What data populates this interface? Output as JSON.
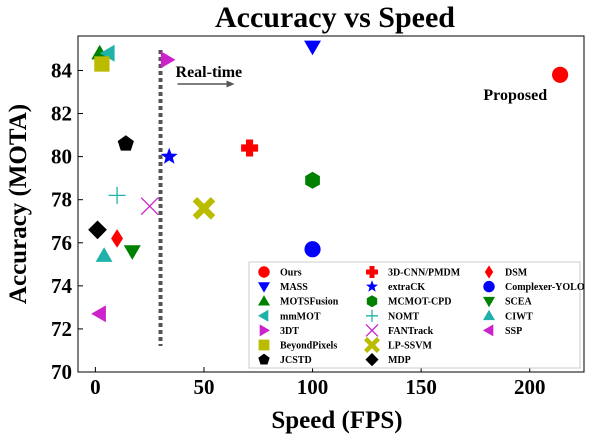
{
  "chart_data": {
    "type": "scatter",
    "title": "Accuracy vs Speed",
    "xlabel": "Speed (FPS)",
    "ylabel": "Accuracy (MOTA)",
    "xlim": [
      -8,
      225
    ],
    "ylim": [
      70,
      85.6
    ],
    "xticks": [
      "0",
      "50",
      "100",
      "150",
      "200"
    ],
    "xtick_values": [
      0,
      50,
      100,
      150,
      200
    ],
    "yticks": [
      "70",
      "72",
      "74",
      "76",
      "78",
      "80",
      "82",
      "84"
    ],
    "ytick_values": [
      70,
      72,
      74,
      76,
      78,
      80,
      82,
      84
    ],
    "grid": false,
    "legend_position": "lower-right",
    "legend_columns": 3,
    "realtime_line": {
      "x": 30,
      "label": "Real-time"
    },
    "annotations": [
      {
        "text": "Proposed",
        "x": 214,
        "y": 83.8
      }
    ],
    "series": [
      {
        "name": "Ours",
        "x": 214,
        "y": 83.8,
        "marker": "circle",
        "color": "#ff0000"
      },
      {
        "name": "MASS",
        "x": 100,
        "y": 85.1,
        "marker": "triangle-down",
        "color": "#0000ff"
      },
      {
        "name": "MOTSFusion",
        "x": 2,
        "y": 84.8,
        "marker": "triangle-up",
        "color": "#008000"
      },
      {
        "name": "mmMOT",
        "x": 6,
        "y": 84.8,
        "marker": "triangle-left",
        "color": "#20b2aa"
      },
      {
        "name": "3DT",
        "x": 33,
        "y": 84.5,
        "marker": "triangle-right",
        "color": "#cc22cc"
      },
      {
        "name": "BeyondPixels",
        "x": 3,
        "y": 84.3,
        "marker": "square",
        "color": "#bbbb00"
      },
      {
        "name": "JCSTD",
        "x": 14,
        "y": 80.6,
        "marker": "pentagon",
        "color": "#000000"
      },
      {
        "name": "3D-CNN/PMDM",
        "x": 71,
        "y": 80.4,
        "marker": "plus",
        "color": "#ff0000"
      },
      {
        "name": "extraCK",
        "x": 34,
        "y": 80.0,
        "marker": "star",
        "color": "#0000ff"
      },
      {
        "name": "MCMOT-CPD",
        "x": 100,
        "y": 78.9,
        "marker": "hexagon",
        "color": "#008000"
      },
      {
        "name": "NOMT",
        "x": 10,
        "y": 78.2,
        "marker": "thin-plus",
        "color": "#20b2aa"
      },
      {
        "name": "FANTrack",
        "x": 25,
        "y": 77.7,
        "marker": "x",
        "color": "#cc22cc"
      },
      {
        "name": "LP-SSVM",
        "x": 50,
        "y": 77.6,
        "marker": "thick-x",
        "color": "#bbbb00"
      },
      {
        "name": "MDP",
        "x": 1,
        "y": 76.6,
        "marker": "diamond",
        "color": "#000000"
      },
      {
        "name": "DSM",
        "x": 10,
        "y": 76.2,
        "marker": "thin-diamond",
        "color": "#ff0000"
      },
      {
        "name": "Complexer-YOLO",
        "x": 100,
        "y": 75.7,
        "marker": "circle",
        "color": "#0000ff"
      },
      {
        "name": "SCEA",
        "x": 17,
        "y": 75.6,
        "marker": "triangle-down",
        "color": "#008000"
      },
      {
        "name": "CIWT",
        "x": 4,
        "y": 75.4,
        "marker": "triangle-up",
        "color": "#20b2aa"
      },
      {
        "name": "SSP",
        "x": 2,
        "y": 72.7,
        "marker": "triangle-left",
        "color": "#cc22cc"
      }
    ]
  }
}
